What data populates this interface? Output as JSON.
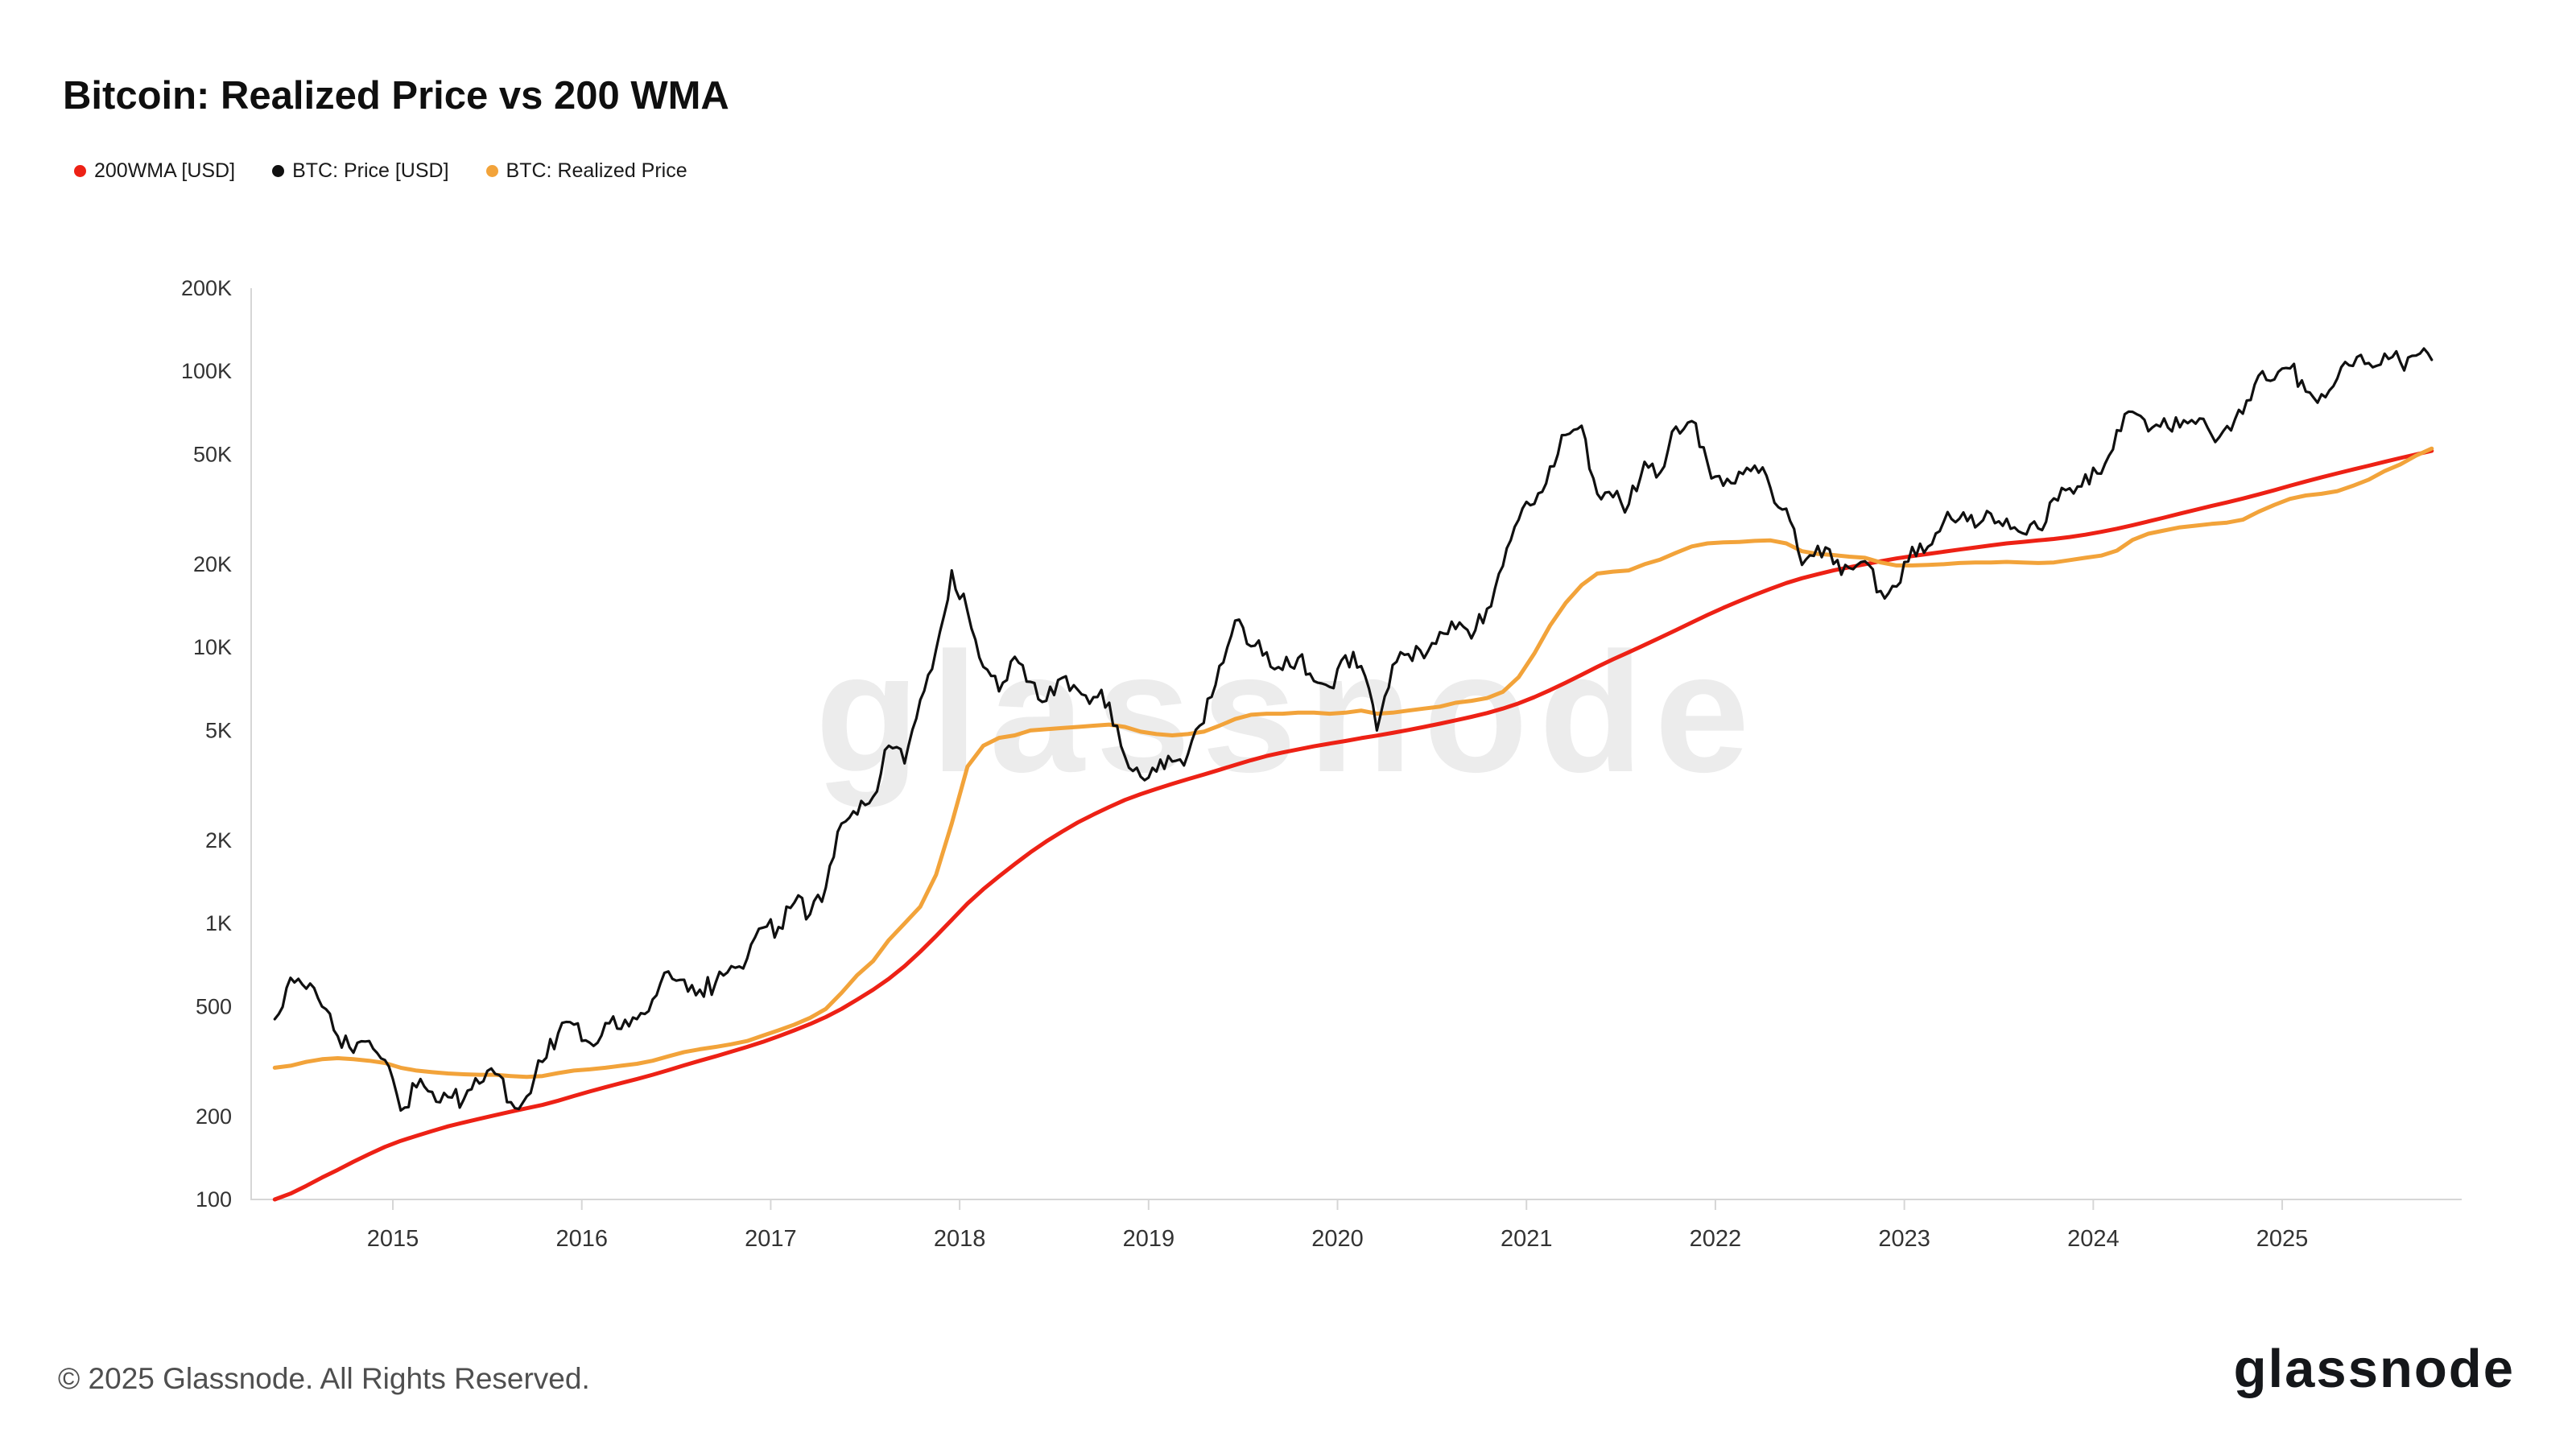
{
  "header": {
    "title": "Bitcoin: Realized Price vs 200 WMA"
  },
  "legend": [
    {
      "label": "200WMA [USD]",
      "color": "#ed2115"
    },
    {
      "label": "BTC: Price [USD]",
      "color": "#101010"
    },
    {
      "label": "BTC: Realized Price",
      "color": "#f2a33a"
    }
  ],
  "watermark": "glassnode",
  "footer": {
    "copyright": "© 2025 Glassnode. All Rights Reserved.",
    "brand": "glassnode"
  },
  "chart_data": {
    "type": "line",
    "title": "Bitcoin: Realized Price vs 200 WMA",
    "xlabel": "",
    "ylabel": "",
    "yscale": "log",
    "ylim": [
      100,
      200000
    ],
    "xlim": [
      2014.25,
      2025.95
    ],
    "grid": false,
    "legend_position": "top-left",
    "ytick_labels": [
      "200K",
      "100K",
      "50K",
      "20K",
      "10K",
      "5K",
      "2K",
      "1K",
      "500",
      "200",
      "100"
    ],
    "ytick_values": [
      200000,
      100000,
      50000,
      20000,
      10000,
      5000,
      2000,
      1000,
      500,
      200,
      100
    ],
    "xticks": [
      2015,
      2016,
      2017,
      2018,
      2019,
      2020,
      2021,
      2022,
      2023,
      2024,
      2025
    ],
    "x_start": 2014.375,
    "x_step": 0.0833333,
    "x_unit": "decimal_year_monthly",
    "series": [
      {
        "name": "200WMA [USD]",
        "color": "#ed2115",
        "width": 5,
        "jitter": false,
        "values": [
          100,
          105,
          112,
          120,
          128,
          137,
          146,
          155,
          163,
          170,
          177,
          184,
          190,
          196,
          202,
          208,
          214,
          220,
          228,
          237,
          246,
          255,
          264,
          273,
          283,
          294,
          306,
          318,
          330,
          343,
          357,
          372,
          390,
          410,
          432,
          458,
          490,
          530,
          575,
          630,
          700,
          790,
          900,
          1030,
          1180,
          1330,
          1480,
          1640,
          1810,
          1980,
          2150,
          2320,
          2480,
          2640,
          2800,
          2940,
          3070,
          3200,
          3330,
          3460,
          3600,
          3750,
          3900,
          4040,
          4160,
          4270,
          4380,
          4480,
          4580,
          4690,
          4790,
          4900,
          5020,
          5150,
          5290,
          5440,
          5600,
          5780,
          6000,
          6270,
          6600,
          7000,
          7450,
          7950,
          8500,
          9050,
          9600,
          10200,
          10850,
          11550,
          12300,
          13100,
          13900,
          14700,
          15500,
          16300,
          17100,
          17800,
          18400,
          19000,
          19500,
          20000,
          20500,
          21000,
          21400,
          21800,
          22200,
          22600,
          23000,
          23400,
          23800,
          24100,
          24400,
          24700,
          25100,
          25600,
          26200,
          26900,
          27700,
          28600,
          29500,
          30500,
          31500,
          32500,
          33500,
          34600,
          35800,
          37100,
          38500,
          39900,
          41300,
          42700,
          44100,
          45500,
          47000,
          48500,
          50000,
          51500
        ]
      },
      {
        "name": "BTC: Price [USD]",
        "color": "#101010",
        "width": 3.2,
        "jitter": true,
        "values": [
          450,
          635,
          580,
          500,
          390,
          340,
          375,
          320,
          210,
          255,
          245,
          235,
          230,
          263,
          285,
          225,
          236,
          315,
          400,
          430,
          370,
          435,
          415,
          450,
          530,
          670,
          625,
          575,
          610,
          700,
          745,
          965,
          970,
          1190,
          1080,
          1350,
          2300,
          2480,
          2875,
          4400,
          3800,
          6450,
          9800,
          19000,
          13500,
          8500,
          6930,
          9240,
          7500,
          6400,
          7750,
          7020,
          6600,
          6300,
          4020,
          3400,
          3550,
          3860,
          4100,
          5320,
          8560,
          12500,
          10090,
          9590,
          8290,
          9150,
          7550,
          7190,
          9350,
          8550,
          5000,
          8630,
          9450,
          9140,
          11350,
          11650,
          10780,
          13800,
          19700,
          29000,
          33100,
          45200,
          58800,
          63500,
          36000,
          35000,
          33000,
          47000,
          43000,
          63000,
          66000,
          46500,
          38500,
          43200,
          45500,
          37700,
          31800,
          19900,
          23300,
          20050,
          19400,
          20500,
          16000,
          16600,
          23100,
          23150,
          28500,
          29250,
          27200,
          30470,
          29230,
          25930,
          26970,
          34650,
          37700,
          42280,
          42580,
          61200,
          71300,
          60640,
          67500,
          62670,
          64600,
          58970,
          63330,
          70200,
          96400,
          93400,
          102400,
          84400,
          82550,
          94200,
          104600,
          107100,
          115800,
          108200,
          114000,
          110000
        ]
      },
      {
        "name": "BTC: Realized Price",
        "color": "#f2a33a",
        "width": 5,
        "jitter": false,
        "values": [
          300,
          305,
          315,
          322,
          325,
          322,
          318,
          312,
          300,
          293,
          289,
          286,
          284,
          283,
          283,
          280,
          278,
          280,
          287,
          293,
          296,
          300,
          305,
          310,
          318,
          330,
          342,
          350,
          357,
          365,
          375,
          392,
          410,
          430,
          455,
          490,
          560,
          650,
          730,
          870,
          1000,
          1150,
          1500,
          2300,
          3700,
          4400,
          4700,
          4800,
          5000,
          5050,
          5100,
          5150,
          5200,
          5250,
          5150,
          4950,
          4850,
          4800,
          4850,
          4950,
          5200,
          5500,
          5700,
          5750,
          5750,
          5800,
          5800,
          5750,
          5800,
          5900,
          5750,
          5800,
          5900,
          6000,
          6100,
          6300,
          6400,
          6550,
          6900,
          7800,
          9500,
          12000,
          14500,
          16800,
          18500,
          18800,
          19000,
          20000,
          20800,
          22000,
          23200,
          23800,
          24000,
          24100,
          24300,
          24400,
          23800,
          22300,
          21800,
          21600,
          21300,
          21100,
          20300,
          19800,
          19800,
          19900,
          20000,
          20200,
          20300,
          20300,
          20400,
          20300,
          20200,
          20300,
          20700,
          21100,
          21500,
          22400,
          24500,
          25800,
          26500,
          27200,
          27600,
          28000,
          28300,
          29000,
          31000,
          32800,
          34500,
          35500,
          36000,
          36800,
          38500,
          40500,
          43500,
          46000,
          49500,
          52500
        ]
      }
    ]
  }
}
